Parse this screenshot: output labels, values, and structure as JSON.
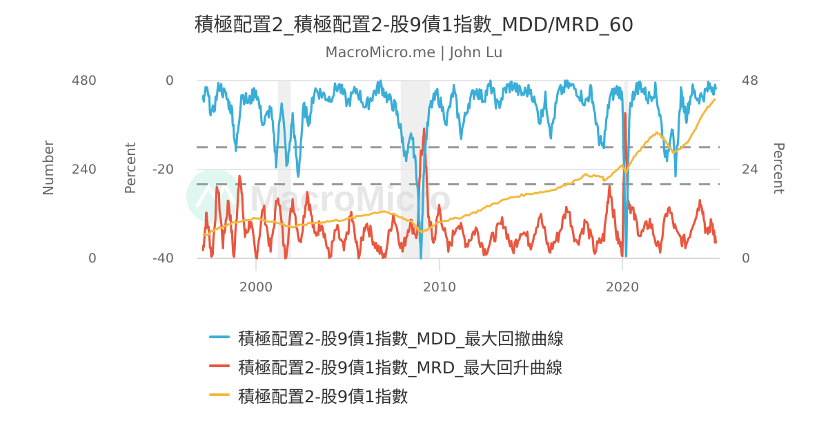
{
  "header": {
    "title": "積極配置2_積極配置2-股9債1指數_MDD/MRD_60",
    "subtitle": "MacroMicro.me | John Lu"
  },
  "watermark": {
    "text": "MacroMicro",
    "icon": "macromicro-logo-icon"
  },
  "axes": {
    "left_outer": {
      "title": "Number",
      "ticks": [
        "480",
        "240",
        "0"
      ]
    },
    "left_inner": {
      "title": "Percent",
      "ticks": [
        "0",
        "-20",
        "-40"
      ]
    },
    "right": {
      "title": "Percent",
      "ticks": [
        "48",
        "24",
        "0"
      ]
    },
    "x": {
      "ticks": [
        "2000",
        "2010",
        "2020"
      ]
    }
  },
  "colors": {
    "mdd": "#3aaed8",
    "mrd": "#e9573f",
    "index": "#f5b83d",
    "threshold": "#999999",
    "grid": "#e6e6e6",
    "recession": "#efefef"
  },
  "legend": {
    "items": [
      {
        "label": "積極配置2-股9債1指數_MDD_最大回撤曲線",
        "color": "#3aaed8"
      },
      {
        "label": "積極配置2-股9債1指數_MRD_最大回升曲線",
        "color": "#e9573f"
      },
      {
        "label": "積極配置2-股9債1指數",
        "color": "#f5b83d"
      }
    ]
  },
  "chart_data": {
    "type": "line",
    "title": "積極配置2_積極配置2-股9債1指數_MDD/MRD_60",
    "subtitle": "MacroMicro.me | John Lu",
    "xlabel": "",
    "ylabel_left_outer": "Number",
    "ylabel_left_inner": "Percent",
    "ylabel_right": "Percent",
    "xlim": [
      1997.1,
      2025.1
    ],
    "ylim_left_outer": [
      0,
      480
    ],
    "ylim_left_inner": [
      -40,
      0
    ],
    "ylim_right": [
      0,
      48
    ],
    "x_ticks": [
      2000,
      2010,
      2020
    ],
    "grid": true,
    "legend_position": "bottom",
    "recession_bands": [
      [
        2001.2,
        2001.9
      ],
      [
        2007.9,
        2009.5
      ],
      [
        2020.1,
        2020.3
      ]
    ],
    "thresholds_right_axis": [
      30,
      20
    ],
    "series": [
      {
        "name": "積極配置2-股9債1指數_MDD_最大回撤曲線",
        "axis": "left_inner",
        "x": [
          1997.1,
          1997.3,
          1997.6,
          1998.0,
          1998.4,
          1998.7,
          1998.9,
          1999.2,
          1999.6,
          2000.0,
          2000.4,
          2000.8,
          2001.1,
          2001.4,
          2001.7,
          2002.0,
          2002.3,
          2002.6,
          2002.9,
          2003.2,
          2003.6,
          2004.0,
          2004.5,
          2005.0,
          2005.5,
          2006.0,
          2006.4,
          2006.8,
          2007.2,
          2007.6,
          2007.9,
          2008.2,
          2008.5,
          2008.8,
          2009.0,
          2009.2,
          2009.5,
          2009.9,
          2010.4,
          2010.8,
          2011.2,
          2011.6,
          2012.0,
          2012.4,
          2012.8,
          2013.2,
          2013.6,
          2014.0,
          2014.5,
          2015.0,
          2015.5,
          2015.8,
          2016.1,
          2016.5,
          2017.0,
          2017.5,
          2018.0,
          2018.3,
          2018.7,
          2018.95,
          2019.3,
          2019.7,
          2020.0,
          2020.2,
          2020.4,
          2020.7,
          2021.0,
          2021.4,
          2021.8,
          2022.1,
          2022.4,
          2022.7,
          2022.9,
          2023.2,
          2023.5,
          2023.8,
          2024.1,
          2024.5,
          2024.8,
          2025.1
        ],
        "values": [
          -5,
          -2,
          -8,
          -1,
          -4,
          -7,
          -16,
          -3,
          -5,
          -2,
          -10,
          -6,
          -18,
          -4,
          -20,
          -8,
          -22,
          -6,
          -9,
          -2,
          -3,
          -4,
          -1,
          -5,
          -2,
          -6,
          -3,
          -1,
          -4,
          -6,
          -11,
          -18,
          -12,
          -22,
          -40,
          -16,
          -6,
          -3,
          -9,
          -2,
          -12,
          -5,
          -2,
          -4,
          -1,
          -6,
          -2,
          -1,
          -3,
          -2,
          -9,
          -4,
          -12,
          -3,
          -1,
          -2,
          -5,
          -2,
          -13,
          -15,
          -4,
          -2,
          -3,
          -40,
          -6,
          -2,
          -1,
          -4,
          -2,
          -9,
          -18,
          -10,
          -20,
          -3,
          -8,
          -2,
          -4,
          -3,
          -1,
          -2
        ]
      },
      {
        "name": "積極配置2-股9債1指數_MRD_最大回升曲線",
        "axis": "right",
        "x": [
          1997.1,
          1997.3,
          1997.6,
          1997.9,
          1998.2,
          1998.5,
          1998.8,
          1999.1,
          1999.4,
          1999.7,
          2000.0,
          2000.4,
          2000.8,
          2001.2,
          2001.6,
          2002.0,
          2002.4,
          2002.8,
          2003.2,
          2003.6,
          2004.0,
          2004.4,
          2004.8,
          2005.2,
          2005.6,
          2006.0,
          2006.5,
          2007.0,
          2007.5,
          2008.0,
          2008.4,
          2008.8,
          2009.0,
          2009.2,
          2009.4,
          2009.7,
          2010.0,
          2010.5,
          2011.0,
          2011.5,
          2012.0,
          2012.5,
          2013.0,
          2013.5,
          2014.0,
          2014.5,
          2015.0,
          2015.5,
          2016.0,
          2016.5,
          2017.0,
          2017.5,
          2018.0,
          2018.5,
          2019.0,
          2019.3,
          2019.7,
          2020.0,
          2020.15,
          2020.3,
          2020.6,
          2021.0,
          2021.5,
          2022.0,
          2022.5,
          2023.0,
          2023.5,
          2024.0,
          2024.3,
          2024.6,
          2024.9,
          2025.1
        ],
        "values": [
          2,
          12,
          0,
          20,
          4,
          16,
          0,
          24,
          6,
          10,
          0,
          14,
          2,
          18,
          0,
          16,
          4,
          18,
          6,
          10,
          0,
          8,
          2,
          12,
          0,
          10,
          4,
          0,
          12,
          2,
          10,
          6,
          28,
          34,
          12,
          4,
          14,
          2,
          10,
          4,
          8,
          2,
          6,
          10,
          2,
          8,
          4,
          12,
          2,
          6,
          14,
          4,
          10,
          2,
          6,
          20,
          6,
          2,
          40,
          16,
          12,
          6,
          10,
          2,
          14,
          6,
          4,
          12,
          16,
          6,
          10,
          4
        ]
      },
      {
        "name": "積極配置2-股9債1指數",
        "axis": "left_outer",
        "x": [
          1997.1,
          1998.0,
          1999.0,
          2000.0,
          2001.0,
          2002.0,
          2003.0,
          2004.0,
          2005.0,
          2006.0,
          2007.0,
          2008.0,
          2008.5,
          2009.0,
          2009.3,
          2010.0,
          2011.0,
          2012.0,
          2013.0,
          2014.0,
          2015.0,
          2016.0,
          2017.0,
          2018.0,
          2018.9,
          2019.0,
          2020.0,
          2020.2,
          2020.5,
          2021.0,
          2021.5,
          2021.9,
          2022.3,
          2022.8,
          2023.5,
          2024.0,
          2024.5,
          2025.1
        ],
        "values": [
          60,
          82,
          100,
          108,
          98,
          84,
          95,
          100,
          106,
          118,
          128,
          108,
          100,
          70,
          76,
          100,
          108,
          125,
          148,
          165,
          175,
          182,
          200,
          225,
          220,
          210,
          250,
          230,
          265,
          295,
          325,
          340,
          320,
          285,
          310,
          350,
          400,
          430
        ]
      }
    ]
  }
}
